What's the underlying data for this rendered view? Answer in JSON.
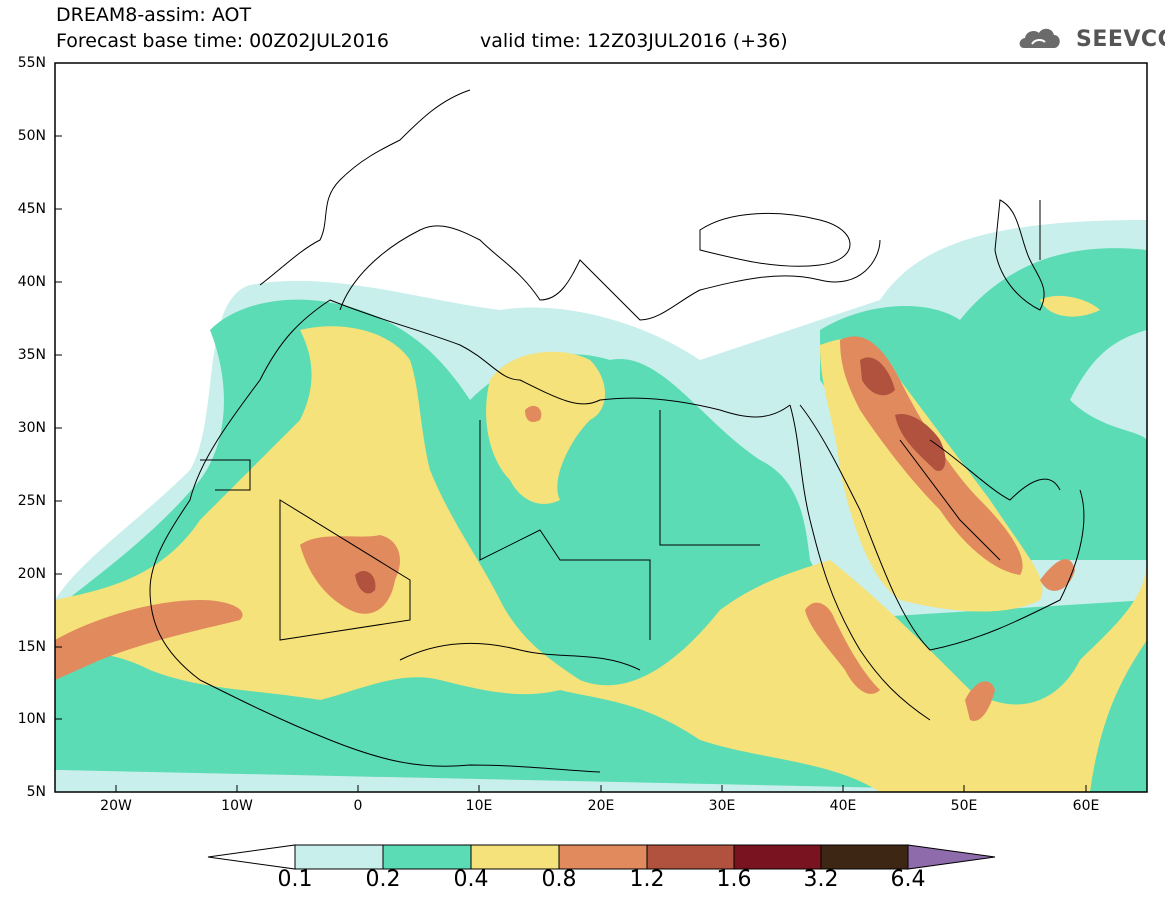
{
  "header": {
    "title": "DREAM8-assim: AOT",
    "base_time": "Forecast base time: 00Z02JUL2016",
    "valid_time": "valid time: 12Z03JUL2016 (+36)",
    "logo_text": "SEEVCCC"
  },
  "map": {
    "projection": "lat-lon",
    "lon_range": [
      -25,
      65
    ],
    "lat_range": [
      5,
      55
    ],
    "lat_ticks": [
      "55N",
      "50N",
      "45N",
      "40N",
      "35N",
      "30N",
      "25N",
      "20N",
      "15N",
      "10N",
      "5N"
    ],
    "lon_ticks": [
      "20W",
      "10W",
      "0",
      "10E",
      "20E",
      "30E",
      "40E",
      "50E",
      "60E"
    ],
    "field": "Aerosol Optical Thickness"
  },
  "colorbar": {
    "labels": [
      "0.1",
      "0.2",
      "0.4",
      "0.8",
      "1.2",
      "1.6",
      "3.2",
      "6.4"
    ],
    "colors": [
      "#c8efec",
      "#5bdcb4",
      "#f6e27a",
      "#e08a5e",
      "#b0523e",
      "#7a1320",
      "#3e2614",
      "#8e6bab"
    ]
  }
}
